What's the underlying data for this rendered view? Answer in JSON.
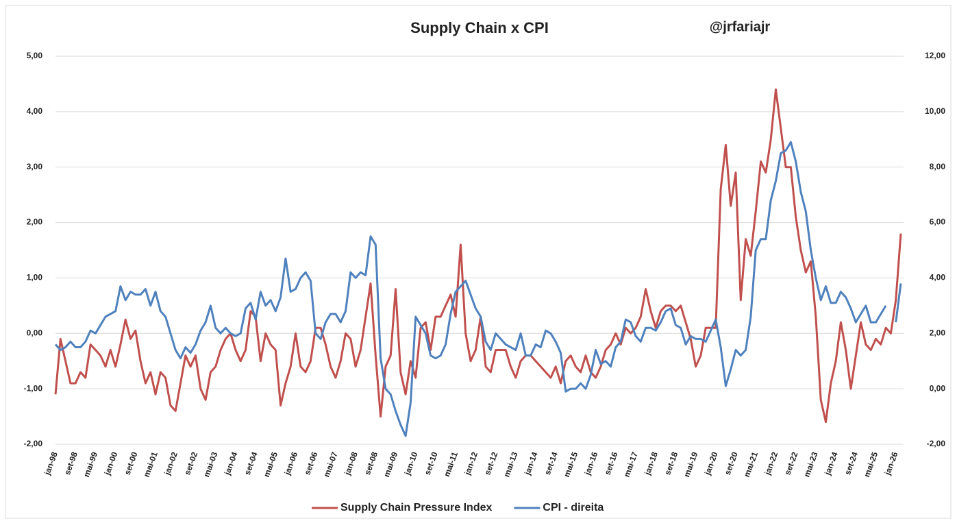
{
  "chart_data": {
    "type": "line",
    "title": "Supply Chain x CPI",
    "annotation": "@jrfariajr",
    "categories": [
      "jan-98",
      null,
      null,
      null,
      "set-98",
      null,
      null,
      null,
      "mai-99",
      null,
      null,
      null,
      "jan-00",
      null,
      null,
      null,
      "set-00",
      null,
      null,
      null,
      "mai-01",
      null,
      null,
      null,
      "jan-02",
      null,
      null,
      null,
      "set-02",
      null,
      null,
      null,
      "mai-03",
      null,
      null,
      null,
      "jan-04",
      null,
      null,
      null,
      "set-04",
      null,
      null,
      null,
      "mai-05",
      null,
      null,
      null,
      "jan-06",
      null,
      null,
      null,
      "set-06",
      null,
      null,
      null,
      "mai-07",
      null,
      null,
      null,
      "jan-08",
      null,
      null,
      null,
      "set-08",
      null,
      null,
      null,
      "mai-09",
      null,
      null,
      null,
      "jan-10",
      null,
      null,
      null,
      "set-10",
      null,
      null,
      null,
      "mai-11",
      null,
      null,
      null,
      "jan-12",
      null,
      null,
      null,
      "set-12",
      null,
      null,
      null,
      "mai-13",
      null,
      null,
      null,
      "jan-14",
      null,
      null,
      null,
      "set-14",
      null,
      null,
      null,
      "mai-15",
      null,
      null,
      null,
      "jan-16",
      null,
      null,
      null,
      "set-16",
      null,
      null,
      null,
      "mai-17",
      null,
      null,
      null,
      "jan-18",
      null,
      null,
      null,
      "set-18",
      null,
      null,
      null,
      "mai-19",
      null,
      null,
      null,
      "jan-20",
      null,
      null,
      null,
      "set-20",
      null,
      null,
      null,
      "mai-21",
      null,
      null,
      null,
      "jan-22",
      null,
      null,
      null,
      "set-22",
      null,
      null,
      null,
      "mai-23",
      null,
      null,
      null,
      "jan-24",
      null,
      null,
      null,
      "set-24",
      null,
      null,
      null,
      "mai-25",
      null,
      null,
      null,
      "jan-26",
      null
    ],
    "series": [
      {
        "name": "Supply Chain Pressure Index",
        "color": "#c0504d",
        "axis": "y",
        "values": [
          -1.1,
          -0.1,
          -0.5,
          -0.9,
          -0.9,
          -0.7,
          -0.8,
          -0.2,
          -0.3,
          -0.4,
          -0.6,
          -0.3,
          -0.6,
          -0.2,
          0.25,
          -0.1,
          0.05,
          -0.5,
          -0.9,
          -0.7,
          -1.1,
          -0.7,
          -0.8,
          -1.3,
          -1.4,
          -0.9,
          -0.4,
          -0.6,
          -0.4,
          -1.0,
          -1.2,
          -0.7,
          -0.6,
          -0.3,
          -0.1,
          0.0,
          -0.3,
          -0.5,
          -0.3,
          0.4,
          0.3,
          -0.5,
          0.0,
          -0.2,
          -0.3,
          -1.3,
          -0.9,
          -0.6,
          0.0,
          -0.6,
          -0.7,
          -0.5,
          0.1,
          0.1,
          -0.2,
          -0.6,
          -0.8,
          -0.5,
          0.0,
          -0.1,
          -0.6,
          -0.3,
          0.3,
          0.9,
          -0.4,
          -1.5,
          -0.6,
          -0.4,
          0.8,
          -0.7,
          -1.1,
          -0.5,
          -0.8,
          0.1,
          0.2,
          -0.3,
          0.3,
          0.3,
          0.5,
          0.7,
          0.3,
          1.6,
          0.0,
          -0.5,
          -0.3,
          0.3,
          -0.6,
          -0.7,
          -0.3,
          -0.3,
          -0.3,
          -0.6,
          -0.8,
          -0.5,
          -0.4,
          -0.4,
          -0.5,
          -0.6,
          -0.7,
          -0.8,
          -0.6,
          -0.9,
          -0.5,
          -0.4,
          -0.6,
          -0.7,
          -0.4,
          -0.7,
          -0.8,
          -0.6,
          -0.3,
          -0.2,
          0.0,
          -0.2,
          0.1,
          0.0,
          0.1,
          0.3,
          0.8,
          0.4,
          0.1,
          0.4,
          0.5,
          0.5,
          0.4,
          0.5,
          0.2,
          -0.1,
          -0.6,
          -0.4,
          0.1,
          0.1,
          0.1,
          2.6,
          3.4,
          2.3,
          2.9,
          0.6,
          1.7,
          1.4,
          2.2,
          3.1,
          2.9,
          3.5,
          4.4,
          3.7,
          3.0,
          3.0,
          2.1,
          1.5,
          1.1,
          1.3,
          0.3,
          -1.2,
          -1.6,
          -0.9,
          -0.5,
          0.2,
          -0.3,
          -1.0,
          -0.4,
          0.2,
          -0.2,
          -0.3,
          -0.1,
          -0.2,
          0.1,
          0.0,
          0.6,
          1.8
        ]
      },
      {
        "name": "CPI - direita",
        "color": "#4f81bd",
        "axis": "y2",
        "values": [
          1.6,
          1.4,
          1.5,
          1.7,
          1.5,
          1.5,
          1.7,
          2.1,
          2.0,
          2.3,
          2.6,
          2.7,
          2.8,
          3.7,
          3.2,
          3.5,
          3.4,
          3.4,
          3.6,
          3.0,
          3.5,
          2.8,
          2.6,
          2.0,
          1.4,
          1.1,
          1.5,
          1.3,
          1.6,
          2.1,
          2.4,
          3.0,
          2.2,
          2.0,
          2.2,
          2.0,
          1.9,
          2.0,
          2.9,
          3.1,
          2.5,
          3.5,
          3.0,
          3.2,
          2.8,
          3.3,
          4.7,
          3.5,
          3.6,
          4.0,
          4.2,
          3.9,
          2.0,
          1.8,
          2.4,
          2.7,
          2.7,
          2.4,
          2.8,
          4.2,
          4.0,
          4.2,
          4.1,
          5.5,
          5.2,
          1.1,
          0.0,
          -0.2,
          -0.8,
          -1.3,
          -1.7,
          -0.5,
          2.6,
          2.3,
          2.0,
          1.2,
          1.1,
          1.2,
          1.6,
          2.7,
          3.5,
          3.7,
          3.9,
          3.4,
          2.9,
          2.6,
          1.7,
          1.4,
          2.0,
          1.8,
          1.6,
          1.5,
          1.4,
          2.0,
          1.2,
          1.2,
          1.6,
          1.5,
          2.1,
          2.0,
          1.7,
          1.3,
          -0.1,
          0.0,
          0.0,
          0.2,
          0.0,
          0.5,
          1.4,
          0.9,
          1.0,
          0.8,
          1.5,
          1.7,
          2.5,
          2.4,
          1.9,
          1.7,
          2.2,
          2.2,
          2.1,
          2.4,
          2.8,
          2.9,
          2.3,
          2.2,
          1.6,
          1.9,
          1.8,
          1.8,
          1.7,
          2.1,
          2.5,
          1.5,
          0.1,
          0.7,
          1.4,
          1.2,
          1.4,
          2.6,
          5.0,
          5.4,
          5.4,
          6.8,
          7.5,
          8.5,
          8.6,
          8.9,
          8.2,
          7.1,
          6.4,
          5.0,
          4.0,
          3.2,
          3.7,
          3.1,
          3.1,
          3.5,
          3.3,
          2.9,
          2.4,
          2.7,
          3.0,
          2.4,
          2.4,
          2.7,
          3.0,
          null,
          2.4,
          3.8
        ]
      }
    ],
    "ylim": [
      -2,
      5
    ],
    "yticks": [
      {
        "value": -2,
        "label": "-2,00"
      },
      {
        "value": -1,
        "label": "-1,00"
      },
      {
        "value": 0,
        "label": "0,00"
      },
      {
        "value": 1,
        "label": "1,00"
      },
      {
        "value": 2,
        "label": "2,00"
      },
      {
        "value": 3,
        "label": "3,00"
      },
      {
        "value": 4,
        "label": "4,00"
      },
      {
        "value": 5,
        "label": "5,00"
      }
    ],
    "y2lim": [
      -2,
      12
    ],
    "y2ticks": [
      {
        "value": -2,
        "label": "-2,00"
      },
      {
        "value": 0,
        "label": "0,00"
      },
      {
        "value": 2,
        "label": "2,00"
      },
      {
        "value": 4,
        "label": "4,00"
      },
      {
        "value": 6,
        "label": "6,00"
      },
      {
        "value": 8,
        "label": "8,00"
      },
      {
        "value": 10,
        "label": "10,00"
      },
      {
        "value": 12,
        "label": "12,00"
      }
    ],
    "grid": true,
    "legend": "bottom"
  }
}
